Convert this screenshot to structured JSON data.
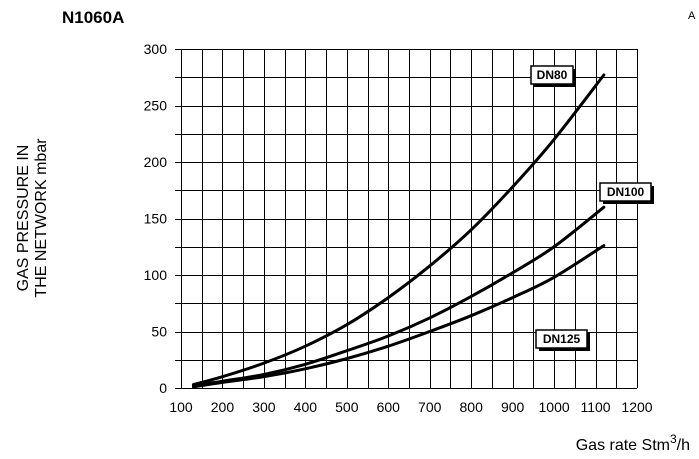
{
  "header": {
    "title": "N1060A",
    "corner_mark": "A"
  },
  "chart_data": {
    "type": "line",
    "title": "N1060A",
    "xlabel": "Gas rate Stm³/h",
    "ylabel_lines": [
      "GAS PRESSURE IN",
      "THE NETWORK mbar"
    ],
    "xlim": [
      100,
      1200
    ],
    "ylim": [
      0,
      300
    ],
    "x_ticks": [
      100,
      200,
      300,
      400,
      500,
      600,
      700,
      800,
      900,
      1000,
      1100,
      1200
    ],
    "y_ticks": [
      0,
      50,
      100,
      150,
      200,
      250,
      300
    ],
    "grid": true,
    "legend": "none",
    "series": [
      {
        "name": "DN80",
        "x": [
          130,
          200,
          300,
          400,
          500,
          600,
          700,
          800,
          900,
          1000,
          1120
        ],
        "y": [
          3,
          10,
          22,
          37,
          56,
          80,
          108,
          140,
          178,
          220,
          277
        ]
      },
      {
        "name": "DN100",
        "x": [
          130,
          200,
          300,
          400,
          500,
          600,
          700,
          800,
          900,
          1000,
          1120
        ],
        "y": [
          2,
          6,
          12,
          21,
          33,
          46,
          62,
          81,
          102,
          125,
          160
        ]
      },
      {
        "name": "DN125",
        "x": [
          130,
          200,
          300,
          400,
          500,
          600,
          700,
          800,
          900,
          1000,
          1120
        ],
        "y": [
          1,
          5,
          10,
          17,
          26,
          37,
          50,
          64,
          80,
          98,
          126
        ]
      }
    ]
  }
}
